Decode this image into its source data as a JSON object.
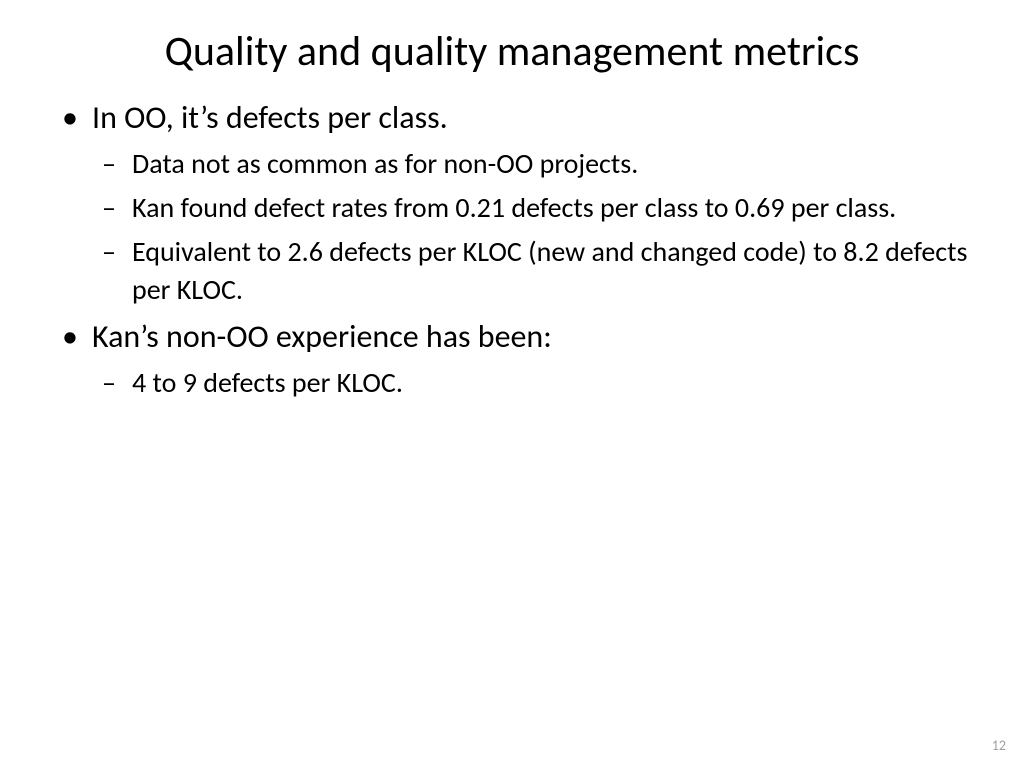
{
  "slide": {
    "title": "Quality and quality management metrics",
    "bullets": [
      {
        "text": "In OO, it’s defects per class.",
        "sub": [
          "Data not as common as for non-OO projects.",
          "Kan found defect rates from 0.21 defects per class to 0.69 per class.",
          "Equivalent to 2.6 defects per KLOC (new and changed code) to 8.2 defects per KLOC."
        ]
      },
      {
        "text": "Kan’s non-OO experience has been:",
        "sub": [
          "4 to 9 defects per KLOC."
        ]
      }
    ],
    "pageNumber": "12"
  },
  "styling": {
    "background_color": "#ffffff",
    "text_color": "#000000",
    "page_number_color": "#a0a0a0",
    "title_fontsize": 42,
    "level1_fontsize": 32,
    "level2_fontsize": 28,
    "font_family": "Calibri"
  }
}
